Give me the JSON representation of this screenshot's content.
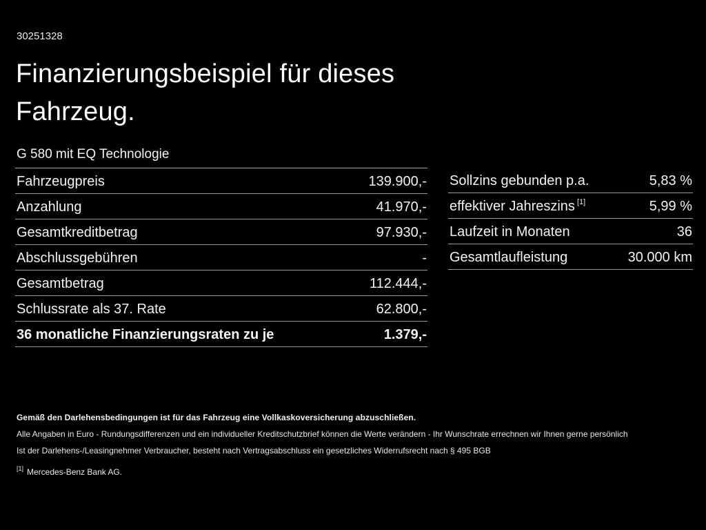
{
  "page": {
    "background_color": "#000000",
    "text_color": "#f2f2f2",
    "rule_color": "#9c9c9c"
  },
  "header": {
    "document_id": "30251328",
    "title": "Finanzierungsbeispiel für dieses Fahrzeug.",
    "vehicle_model": "G 580 mit EQ Technologie"
  },
  "financing_table": {
    "rows": [
      {
        "label": "Fahrzeugpreis",
        "value": "139.900,-"
      },
      {
        "label": "Anzahlung",
        "value": "41.970,-"
      },
      {
        "label": "Gesamtkreditbetrag",
        "value": "97.930,-"
      },
      {
        "label": "Abschlussgebühren",
        "value": "-"
      },
      {
        "label": "Gesamtbetrag",
        "value": "112.444,-"
      },
      {
        "label": "Schlussrate als 37. Rate",
        "value": "62.800,-"
      },
      {
        "label": "36 monatliche Finanzierungsraten zu je",
        "value": "1.379,-"
      }
    ]
  },
  "conditions_table": {
    "rows": [
      {
        "label": "Sollzins gebunden p.a.",
        "value": "5,83 %"
      },
      {
        "label": "effektiver Jahreszins",
        "footnote_marker": "[1]",
        "value": "5,99 %"
      },
      {
        "label": "Laufzeit in Monaten",
        "value": "36"
      },
      {
        "label": "Gesamtlaufleistung",
        "value": "30.000 km"
      }
    ]
  },
  "footer": {
    "insurance_note": "Gemäß den Darlehensbedingungen ist für das Fahrzeug eine Vollkaskoversicherung abzuschließen.",
    "disclaimer_line1": "Alle Angaben in Euro - Rundungsdifferenzen und ein individueller Kreditschutzbrief können die Werte verändern - Ihr Wunschrate errechnen wir Ihnen gerne persönlich",
    "disclaimer_line2": "Ist der Darlehens-/Leasingnehmer Verbraucher, besteht nach Vertragsabschluss ein gesetzliches Widerrufsrecht nach § 495 BGB",
    "footnote_marker": "[1]",
    "footnote_text": "Mercedes-Benz Bank AG."
  }
}
